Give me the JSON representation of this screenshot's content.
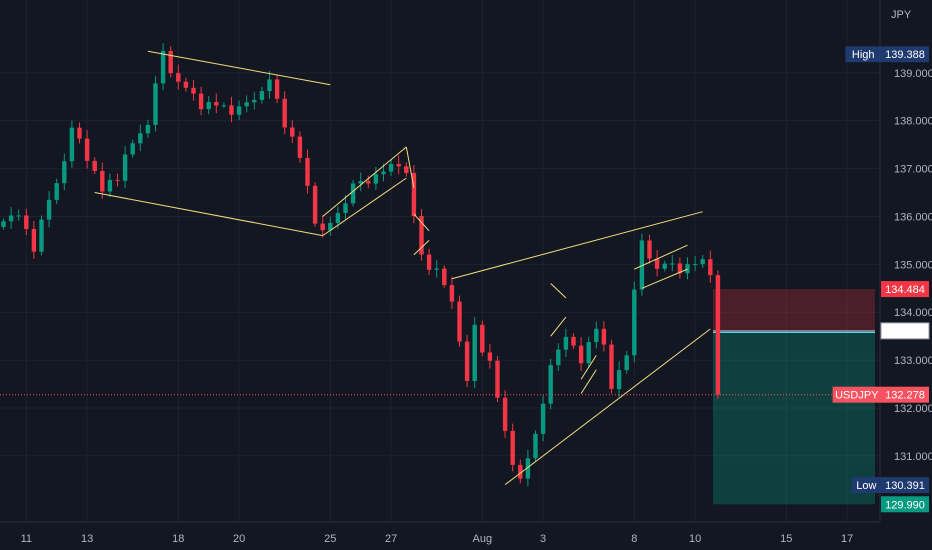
{
  "currency_label": "JPY",
  "chart_data": {
    "type": "candlestick",
    "symbol": "USDJPY",
    "y_axis": {
      "unit": "JPY",
      "ylim": [
        129.62,
        140.52
      ],
      "ticks": [
        {
          "v": 139,
          "label": "139.000"
        },
        {
          "v": 138,
          "label": "138.000"
        },
        {
          "v": 137,
          "label": "137.000"
        },
        {
          "v": 136,
          "label": "136.000"
        },
        {
          "v": 135,
          "label": "135.000"
        },
        {
          "v": 134,
          "label": "134.000"
        },
        {
          "v": 133,
          "label": "133.000"
        },
        {
          "v": 132,
          "label": "132.000"
        },
        {
          "v": 131,
          "label": "131.000"
        }
      ]
    },
    "x_axis": {
      "ticks": [
        "11",
        "13",
        "18",
        "20",
        "25",
        "27",
        "Aug",
        "3",
        "8",
        "10",
        "15",
        "17"
      ],
      "tick_index": [
        3,
        11,
        23,
        31,
        43,
        51,
        63,
        71,
        83,
        91,
        103,
        111
      ]
    },
    "path": [
      [
        0,
        135.9
      ],
      [
        2,
        136.0
      ],
      [
        4,
        135.4
      ],
      [
        6,
        136.3
      ],
      [
        8,
        137.2
      ],
      [
        9,
        137.8
      ],
      [
        11,
        137.3
      ],
      [
        13,
        136.5
      ],
      [
        15,
        136.9
      ],
      [
        17,
        137.5
      ],
      [
        19,
        138.0
      ],
      [
        21,
        139.4
      ],
      [
        23,
        138.8
      ],
      [
        25,
        138.5
      ],
      [
        27,
        138.3
      ],
      [
        29,
        138.3
      ],
      [
        31,
        138.2
      ],
      [
        33,
        138.5
      ],
      [
        35,
        138.8
      ],
      [
        37,
        138.0
      ],
      [
        39,
        137.2
      ],
      [
        41,
        136.0
      ],
      [
        42,
        135.6
      ],
      [
        44,
        136.1
      ],
      [
        46,
        136.6
      ],
      [
        48,
        136.8
      ],
      [
        50,
        136.9
      ],
      [
        52,
        137.2
      ],
      [
        53,
        136.8
      ],
      [
        55,
        135.2
      ],
      [
        57,
        134.8
      ],
      [
        59,
        134.3
      ],
      [
        61,
        132.5
      ],
      [
        62,
        133.7
      ],
      [
        64,
        132.9
      ],
      [
        66,
        131.5
      ],
      [
        68,
        130.4
      ],
      [
        70,
        131.5
      ],
      [
        72,
        132.8
      ],
      [
        74,
        133.6
      ],
      [
        76,
        132.9
      ],
      [
        78,
        133.8
      ],
      [
        79,
        133.2
      ],
      [
        80,
        132.4
      ],
      [
        82,
        133.2
      ],
      [
        84,
        135.5
      ],
      [
        86,
        134.9
      ],
      [
        88,
        135.0
      ],
      [
        90,
        134.9
      ],
      [
        92,
        135.1
      ],
      [
        93,
        134.9
      ],
      [
        94,
        132.278
      ]
    ],
    "series": [
      {
        "values": []
      }
    ],
    "last_price": {
      "label": "USDJPY",
      "value": "132.278",
      "color": "#f7525f"
    },
    "high": {
      "label": "High",
      "value": "139.388"
    },
    "low": {
      "label": "Low",
      "value": "130.391"
    },
    "position": {
      "stop_loss": {
        "value": "134.484",
        "price": 134.484,
        "color": "#f23645"
      },
      "entry": {
        "value": "133.611",
        "price": 133.611
      },
      "take_profit": {
        "value": "129.990",
        "price": 129.99,
        "color": "#089981"
      }
    },
    "drawings": [
      [
        [
          19,
          139.45
        ],
        [
          43,
          138.75
        ]
      ],
      [
        [
          12,
          136.5
        ],
        [
          42,
          135.6
        ]
      ],
      [
        [
          42,
          136.0
        ],
        [
          53,
          137.45
        ]
      ],
      [
        [
          42,
          135.6
        ],
        [
          53,
          136.8
        ]
      ],
      [
        [
          53,
          137.45
        ],
        [
          54,
          136.6
        ]
      ],
      [
        [
          54,
          136.05
        ],
        [
          56,
          135.7
        ]
      ],
      [
        [
          54,
          135.2
        ],
        [
          56,
          135.5
        ]
      ],
      [
        [
          59,
          134.7
        ],
        [
          92,
          136.1
        ]
      ],
      [
        [
          66,
          130.4
        ],
        [
          93,
          133.65
        ]
      ],
      [
        [
          72,
          134.6
        ],
        [
          74,
          134.3
        ]
      ],
      [
        [
          72,
          133.5
        ],
        [
          74,
          133.9
        ]
      ],
      [
        [
          76,
          132.6
        ],
        [
          78,
          133.1
        ]
      ],
      [
        [
          76,
          132.3
        ],
        [
          78,
          132.8
        ]
      ],
      [
        [
          83,
          134.9
        ],
        [
          90,
          135.4
        ]
      ],
      [
        [
          84,
          134.5
        ],
        [
          90,
          134.9
        ]
      ]
    ]
  }
}
